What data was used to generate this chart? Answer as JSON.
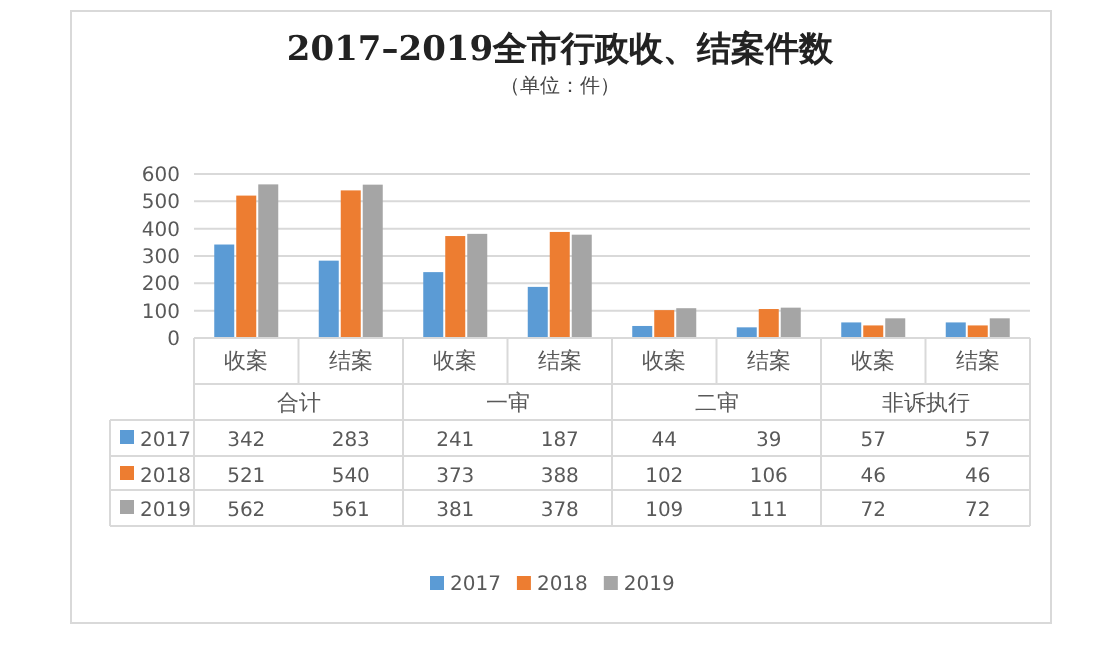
{
  "chart_data": {
    "type": "bar",
    "title": "2017–2019全市行政收、结案件数",
    "subtitle": "（单位：件）",
    "categories": [
      "收案",
      "结案",
      "收案",
      "结案",
      "收案",
      "结案",
      "收案",
      "结案"
    ],
    "annotations": [
      "合计",
      "一审",
      "二审",
      "非诉执行"
    ],
    "series": [
      {
        "name": "2017",
        "color": "#5b9bd5",
        "values": [
          342,
          283,
          241,
          187,
          44,
          39,
          57,
          57
        ]
      },
      {
        "name": "2018",
        "color": "#ed7d31",
        "values": [
          521,
          540,
          373,
          388,
          102,
          106,
          46,
          46
        ]
      },
      {
        "name": "2019",
        "color": "#a5a5a5",
        "values": [
          562,
          561,
          381,
          378,
          109,
          111,
          72,
          72
        ]
      }
    ],
    "ylim": [
      0,
      600
    ],
    "yticks": [
      0,
      100,
      200,
      300,
      400,
      500,
      600
    ],
    "grid": "y",
    "legend": "bottom",
    "data_labels": true
  }
}
